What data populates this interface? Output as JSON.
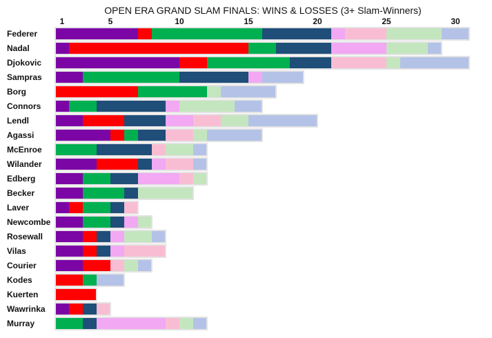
{
  "chart_data": {
    "type": "bar",
    "title": "OPEN ERA GRAND SLAM FINALS: WINS & LOSSES (3+ Slam-Winners)",
    "xlabel": "",
    "ylabel": "",
    "x_ticks": [
      1,
      5,
      10,
      15,
      20,
      25,
      30
    ],
    "xlim": [
      1,
      31.5
    ],
    "grid": false,
    "legend": "none",
    "colors": {
      "win_aus": "#7c05a6",
      "win_fre": "#ff0000",
      "win_wim": "#00b050",
      "win_usa": "#1f4e79",
      "loss_aus": "#f2a8f2",
      "loss_fre": "#f9bdd3",
      "loss_wim": "#c4e6bf",
      "loss_usa": "#b4c2e8",
      "outline": "#e3e3e3"
    },
    "segment_order": [
      "win_aus",
      "win_fre",
      "win_wim",
      "win_usa",
      "loss_aus",
      "loss_fre",
      "loss_wim",
      "loss_usa"
    ],
    "players": [
      {
        "name": "Federer",
        "values": [
          6,
          1,
          8,
          5,
          1,
          3,
          4,
          2
        ]
      },
      {
        "name": "Nadal",
        "values": [
          1,
          13,
          2,
          4,
          4,
          0,
          3,
          1
        ]
      },
      {
        "name": "Djokovic",
        "values": [
          9,
          2,
          6,
          3,
          0,
          4,
          1,
          5
        ]
      },
      {
        "name": "Sampras",
        "values": [
          2,
          0,
          7,
          5,
          1,
          0,
          0,
          3
        ]
      },
      {
        "name": "Borg",
        "values": [
          0,
          6,
          5,
          0,
          0,
          0,
          1,
          4
        ]
      },
      {
        "name": "Connors",
        "values": [
          1,
          0,
          2,
          5,
          1,
          0,
          4,
          2
        ]
      },
      {
        "name": "Lendl",
        "values": [
          2,
          3,
          0,
          3,
          2,
          2,
          2,
          5
        ]
      },
      {
        "name": "Agassi",
        "values": [
          4,
          1,
          1,
          2,
          0,
          2,
          1,
          4
        ]
      },
      {
        "name": "McEnroe",
        "values": [
          0,
          0,
          3,
          4,
          0,
          1,
          2,
          1
        ]
      },
      {
        "name": "Wilander",
        "values": [
          3,
          3,
          0,
          1,
          1,
          2,
          0,
          1
        ]
      },
      {
        "name": "Edberg",
        "values": [
          2,
          0,
          2,
          2,
          3,
          1,
          1,
          0
        ]
      },
      {
        "name": "Becker",
        "values": [
          2,
          0,
          3,
          1,
          0,
          0,
          4,
          0
        ]
      },
      {
        "name": "Laver",
        "values": [
          1,
          1,
          2,
          1,
          0,
          1,
          0,
          0
        ]
      },
      {
        "name": "Newcombe",
        "values": [
          2,
          0,
          2,
          1,
          1,
          0,
          1,
          0
        ]
      },
      {
        "name": "Rosewall",
        "values": [
          2,
          1,
          0,
          1,
          1,
          0,
          2,
          1
        ]
      },
      {
        "name": "Vilas",
        "values": [
          2,
          1,
          0,
          1,
          1,
          3,
          0,
          0
        ]
      },
      {
        "name": "Courier",
        "values": [
          2,
          2,
          0,
          0,
          0,
          1,
          1,
          1
        ]
      },
      {
        "name": "Kodes",
        "values": [
          0,
          2,
          1,
          0,
          0,
          0,
          0,
          2
        ]
      },
      {
        "name": "Kuerten",
        "values": [
          0,
          3,
          0,
          0,
          0,
          0,
          0,
          0
        ]
      },
      {
        "name": "Wawrinka",
        "values": [
          1,
          1,
          0,
          1,
          0,
          1,
          0,
          0
        ]
      },
      {
        "name": "Murray",
        "values": [
          0,
          0,
          2,
          1,
          5,
          1,
          1,
          1
        ]
      }
    ]
  }
}
